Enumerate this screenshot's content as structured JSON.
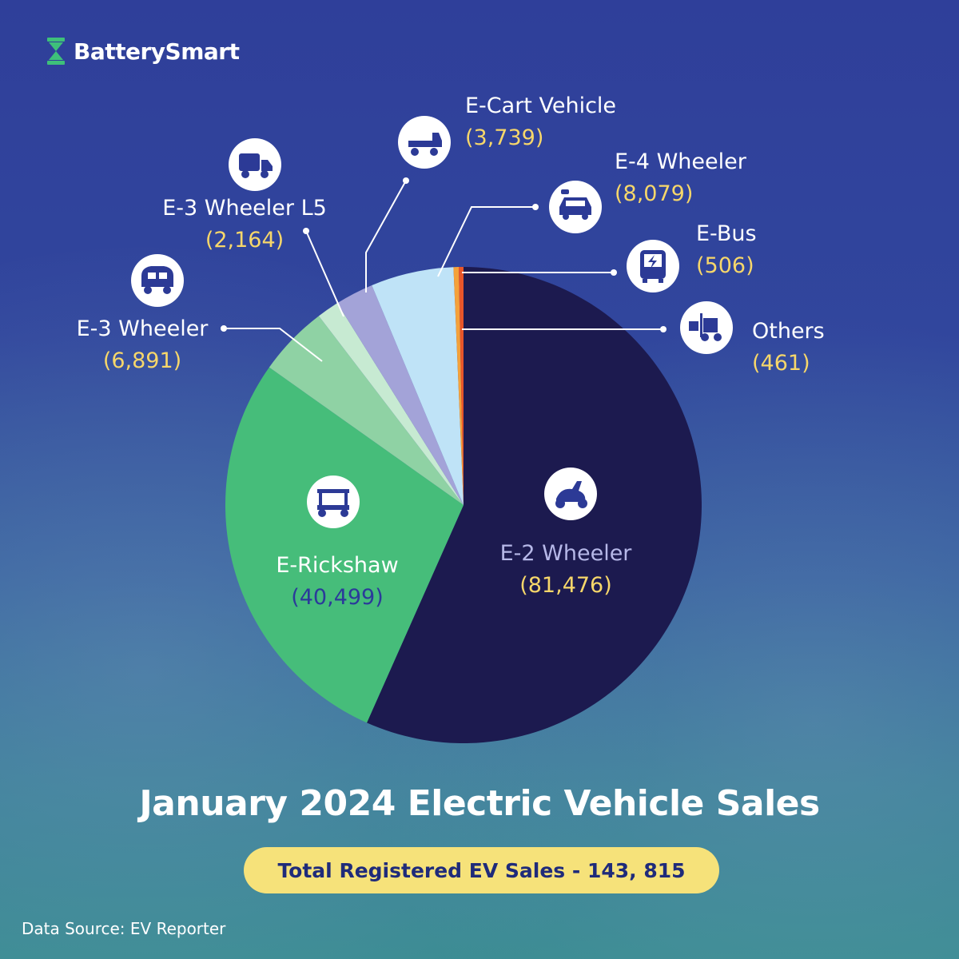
{
  "brand": {
    "name": "BatterySmart",
    "color": "#3ec07a"
  },
  "title": "January 2024 Electric Vehicle Sales",
  "total_label": "Total Registered EV Sales - 143, 815",
  "source": "Data Source: EV Reporter",
  "chart_data": {
    "type": "pie",
    "title": "January 2024 Electric Vehicle Sales",
    "slices": [
      {
        "label": "E-2 Wheeler",
        "value": 81476,
        "display": "(81,476)",
        "color": "#1c1a4f",
        "icon": "scooter-icon"
      },
      {
        "label": "E-Rickshaw",
        "value": 40499,
        "display": "(40,499)",
        "color": "#46bd7a",
        "icon": "e-rickshaw-icon"
      },
      {
        "label": "E-3 Wheeler",
        "value": 6891,
        "display": "(6,891)",
        "color": "#8fd2a4",
        "icon": "auto-rickshaw-icon"
      },
      {
        "label": "E-3 Wheeler L5",
        "value": 2164,
        "display": "(2,164)",
        "color": "#c7ead2",
        "icon": "truck-icon"
      },
      {
        "label": "E-Cart Vehicle",
        "value": 3739,
        "display": "(3,739)",
        "color": "#a3a3d8",
        "icon": "cart-vehicle-icon"
      },
      {
        "label": "E-4 Wheeler",
        "value": 8079,
        "display": "(8,079)",
        "color": "#bfe3f7",
        "icon": "electric-car-icon"
      },
      {
        "label": "E-Bus",
        "value": 506,
        "display": "(506)",
        "color": "#f4a13a",
        "icon": "bus-icon"
      },
      {
        "label": "Others",
        "value": 461,
        "display": "(461)",
        "color": "#e8562a",
        "icon": "forklift-icon"
      }
    ]
  }
}
